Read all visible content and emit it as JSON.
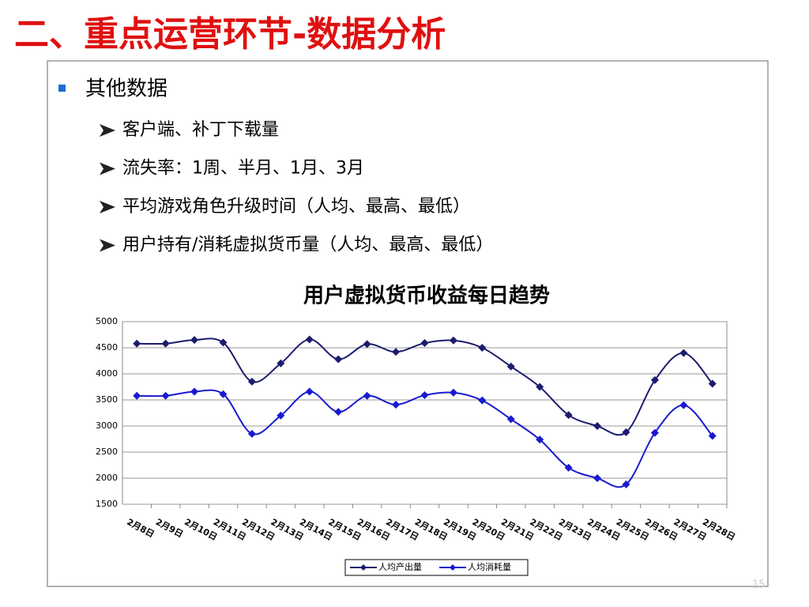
{
  "header": {
    "title": "二、重点运营环节-数据分析"
  },
  "bullets": {
    "main": "其他数据",
    "items": [
      "客户端、补丁下载量",
      "流失率：1周、半月、1月、3月",
      "平均游戏角色升级时间（人均、最高、最低）",
      "用户持有/消耗虚拟货币量（人均、最高、最低）"
    ]
  },
  "footer": {
    "page": "15"
  },
  "chart_data": {
    "type": "line",
    "title": "用户虚拟货币收益每日趋势",
    "categories": [
      "2月8日",
      "2月9日",
      "2月10日",
      "2月11日",
      "2月12日",
      "2月13日",
      "2月14日",
      "2月15日",
      "2月16日",
      "2月17日",
      "2月18日",
      "2月19日",
      "2月20日",
      "2月21日",
      "2月22日",
      "2月23日",
      "2月24日",
      "2月25日",
      "2月26日",
      "2月27日",
      "2月28日"
    ],
    "series": [
      {
        "name": "人均产出量",
        "color": "#1c1c6e",
        "values": [
          4580,
          4580,
          4650,
          4600,
          3850,
          4200,
          4660,
          4280,
          4570,
          4420,
          4590,
          4640,
          4500,
          4140,
          3750,
          3210,
          3000,
          2880,
          3880,
          4400,
          3810
        ]
      },
      {
        "name": "人均消耗量",
        "color": "#1a1ad0",
        "values": [
          3580,
          3580,
          3660,
          3610,
          2850,
          3200,
          3660,
          3270,
          3580,
          3410,
          3590,
          3640,
          3490,
          3130,
          2740,
          2200,
          2000,
          1880,
          2870,
          3400,
          2810
        ]
      }
    ],
    "ylim": [
      1500,
      5000
    ],
    "yticks": [
      1500,
      2000,
      2500,
      3000,
      3500,
      4000,
      4500,
      5000
    ],
    "grid": true,
    "legend": "bottom"
  }
}
